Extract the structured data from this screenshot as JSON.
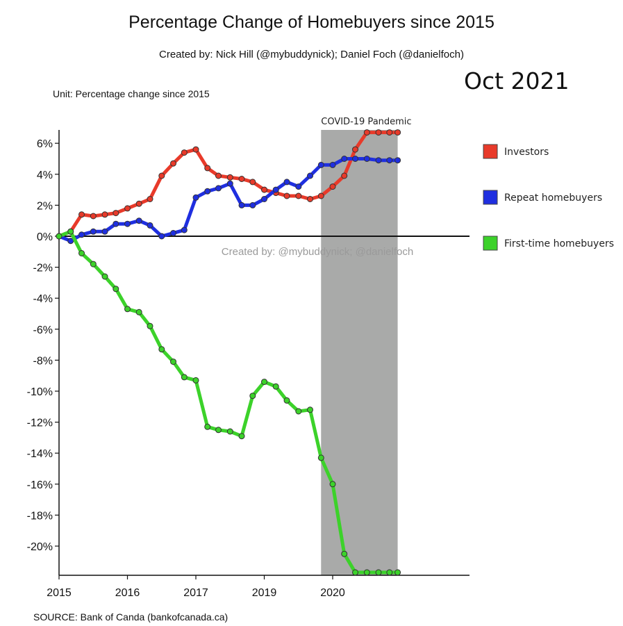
{
  "header": {
    "title": "Percentage Change of Homebuyers since 2015",
    "subtitle": "Created by: Nick Hill (@mybuddynick); Daniel Foch (@danielfoch)",
    "unit": "Unit: Percentage change since 2015",
    "date_stamp": "Oct 2021",
    "source": "SOURCE: Bank of Canda (bankofcanada.ca)",
    "watermark": "Created by: @mybuddynick; @danielfoch"
  },
  "chart_data": {
    "type": "line",
    "title": "Percentage Change of Homebuyers since 2015",
    "ylim": [
      -22,
      7
    ],
    "xlim": [
      2015,
      2021.0
    ],
    "y_ticks": [
      6,
      4,
      2,
      0,
      -2,
      -4,
      -6,
      -8,
      -10,
      -12,
      -14,
      -16,
      -18,
      -20
    ],
    "y_tick_labels": [
      "6%",
      "4%",
      "2%",
      "0%",
      "-2%",
      "-4%",
      "-6%",
      "-8%",
      "-10%",
      "-12%",
      "-14%",
      "-16%",
      "-18%",
      "-20%"
    ],
    "x_ticks": [
      {
        "value": 2015,
        "label": "2015"
      },
      {
        "value": 2016,
        "label": "2016"
      },
      {
        "value": 2017,
        "label": "2017"
      },
      {
        "value": 2018,
        "label": "2019"
      },
      {
        "value": 2019,
        "label": "2020"
      }
    ],
    "grid": false,
    "legend_position": "right",
    "shaded_region": {
      "x_start": 2018.83,
      "x_end": 2019.95,
      "label": "COVID-19 Pandemic",
      "color": "#a9aaa9"
    },
    "series": [
      {
        "name": "Investors",
        "color": "#e83a2a",
        "x": [
          2015.0,
          2015.17,
          2015.33,
          2015.5,
          2015.67,
          2015.83,
          2016.0,
          2016.17,
          2016.33,
          2016.5,
          2016.67,
          2016.83,
          2017.0,
          2017.17,
          2017.33,
          2017.5,
          2017.67,
          2017.83,
          2018.0,
          2018.17,
          2018.33,
          2018.5,
          2018.67,
          2018.83,
          2019.0,
          2019.17,
          2019.33,
          2019.5,
          2019.67,
          2019.83,
          2019.95
        ],
        "values": [
          0.0,
          0.3,
          1.4,
          1.3,
          1.4,
          1.5,
          1.8,
          2.1,
          2.4,
          3.9,
          4.7,
          5.4,
          5.6,
          4.4,
          3.9,
          3.8,
          3.7,
          3.5,
          3.0,
          2.8,
          2.6,
          2.6,
          2.4,
          2.6,
          3.2,
          3.9,
          5.6,
          6.7,
          6.7,
          6.7,
          6.7
        ]
      },
      {
        "name": "Repeat homebuyers",
        "color": "#1f2fe0",
        "x": [
          2015.0,
          2015.17,
          2015.33,
          2015.5,
          2015.67,
          2015.83,
          2016.0,
          2016.17,
          2016.33,
          2016.5,
          2016.67,
          2016.83,
          2017.0,
          2017.17,
          2017.33,
          2017.5,
          2017.67,
          2017.83,
          2018.0,
          2018.17,
          2018.33,
          2018.5,
          2018.67,
          2018.83,
          2019.0,
          2019.17,
          2019.33,
          2019.5,
          2019.67,
          2019.83,
          2019.95
        ],
        "values": [
          0.0,
          -0.3,
          0.1,
          0.3,
          0.3,
          0.8,
          0.8,
          1.0,
          0.7,
          0.0,
          0.2,
          0.4,
          2.5,
          2.9,
          3.1,
          3.4,
          2.0,
          2.0,
          2.4,
          3.0,
          3.5,
          3.2,
          3.9,
          4.6,
          4.6,
          5.0,
          5.0,
          5.0,
          4.9,
          4.9,
          4.9
        ]
      },
      {
        "name": "First-time homebuyers",
        "color": "#3cd22a",
        "x": [
          2015.0,
          2015.17,
          2015.33,
          2015.5,
          2015.67,
          2015.83,
          2016.0,
          2016.17,
          2016.33,
          2016.5,
          2016.67,
          2016.83,
          2017.0,
          2017.17,
          2017.33,
          2017.5,
          2017.67,
          2017.83,
          2018.0,
          2018.17,
          2018.33,
          2018.5,
          2018.67,
          2018.83,
          2019.0,
          2019.17,
          2019.33,
          2019.5,
          2019.67,
          2019.83,
          2019.95
        ],
        "values": [
          0.0,
          0.3,
          -1.1,
          -1.8,
          -2.6,
          -3.4,
          -4.7,
          -4.9,
          -5.8,
          -7.3,
          -8.1,
          -9.1,
          -9.3,
          -12.3,
          -12.5,
          -12.6,
          -12.9,
          -10.3,
          -9.4,
          -9.7,
          -10.6,
          -11.3,
          -11.2,
          -14.3,
          -16.0,
          -20.5,
          -21.7,
          -21.7,
          -21.7,
          -21.7,
          -21.7
        ]
      }
    ]
  }
}
